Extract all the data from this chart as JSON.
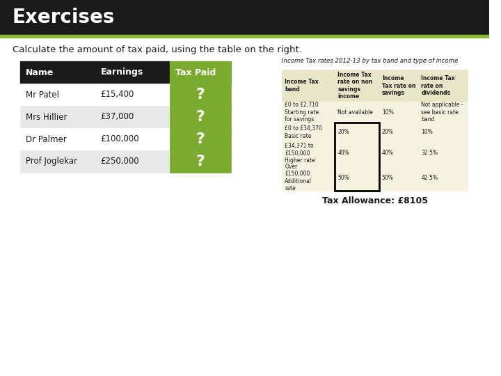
{
  "title": "Exercises",
  "subtitle": "Calculate the amount of tax paid, using the table on the right.",
  "title_bg": "#1a1a1a",
  "title_fg": "#ffffff",
  "accent_line_color": "#8ab832",
  "bg_color": "#ffffff",
  "left_table": {
    "headers": [
      "Name",
      "Earnings",
      "Tax Paid"
    ],
    "header_bg": "#1a1a1a",
    "header_fg": "#ffffff",
    "tax_paid_bg": "#7aab2e",
    "tax_paid_question_color": "#ffffff",
    "rows": [
      [
        "Mr Patel",
        "£15,400",
        "?"
      ],
      [
        "Mrs Hillier",
        "£37,000",
        "?"
      ],
      [
        "Dr Palmer",
        "£100,000",
        "?"
      ],
      [
        "Prof Joglekar",
        "£250,000",
        "?"
      ]
    ],
    "row_bg_even": "#ffffff",
    "row_bg_odd": "#e8e8e8",
    "cell_fg": "#1a1a1a"
  },
  "right_table_title": "Income Tax rates 2012-13 by tax band and type of income",
  "right_table": {
    "headers": [
      "Income Tax\nband",
      "Income Tax\nrate on non\nsavings\nincome",
      "Income\nTax rate on\nsavings",
      "Income Tax\nrate on\ndividends"
    ],
    "header_bg": "#e8e6c8",
    "header_fg": "#1a1a1a",
    "row_bg": "#f5f3e0",
    "cell_fg": "#1a1a1a",
    "rows": [
      [
        "£0 to £2,710\nStarting rate\nfor savings",
        "Not available",
        "10%",
        "Not applicable -\nsee basic rate\nband"
      ],
      [
        "£0 to £34,370\nBasic rate",
        "20%",
        "20%",
        "10%"
      ],
      [
        "£34,371 to\n£150,000\nHigher rate",
        "40%",
        "40%",
        "32.5%"
      ],
      [
        "Over\n£150,000\nAdditional\nrate",
        "50%",
        "50%",
        "42.5%"
      ]
    ],
    "highlight_col": 1,
    "highlight_rows": [
      1,
      2,
      3
    ],
    "highlight_border_color": "#000000"
  },
  "tax_allowance": "Tax Allowance: £8105"
}
